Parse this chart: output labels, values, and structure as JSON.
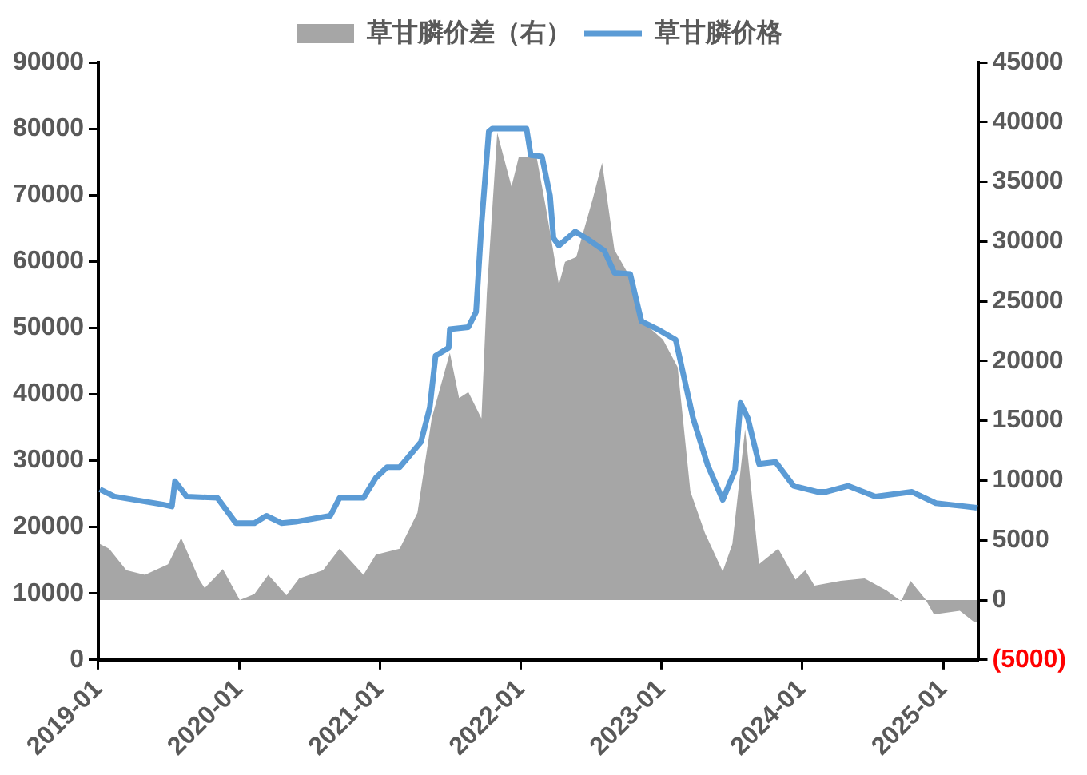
{
  "chart_data": {
    "type": "line",
    "legend": "top",
    "grid": false,
    "xlim": [
      "2019-01",
      "2025-04"
    ],
    "xticks": [
      "2019-01",
      "2020-01",
      "2021-01",
      "2022-01",
      "2023-01",
      "2024-01",
      "2025-01"
    ],
    "ylim": [
      0,
      90000
    ],
    "yticks": [
      0,
      10000,
      20000,
      30000,
      40000,
      50000,
      60000,
      70000,
      80000,
      90000
    ],
    "y2lim": [
      -5000,
      45000
    ],
    "y2ticks": [
      {
        "value": -5000,
        "label": "(5000)"
      },
      0,
      5000,
      10000,
      15000,
      20000,
      25000,
      30000,
      35000,
      40000,
      45000
    ],
    "series": [
      {
        "name": "草甘膦价差（右）",
        "type": "area",
        "axis": "y2",
        "color": "#a6a6a6",
        "x": [
          "2019-01-05",
          "2019-01-29",
          "2019-03-15",
          "2019-05-02",
          "2019-07-01",
          "2019-08-04",
          "2019-09-20",
          "2019-10-04",
          "2019-11-06",
          "2019-11-20",
          "2020-01-03",
          "2020-02-10",
          "2020-03-17",
          "2020-05-03",
          "2020-06-05",
          "2020-08-06",
          "2020-09-18",
          "2020-11-19",
          "2020-12-21",
          "2021-02-21",
          "2021-04-08",
          "2021-05-15",
          "2021-07-01",
          "2021-07-25",
          "2021-08-18",
          "2021-09-21",
          "2021-10-05",
          "2021-11-01",
          "2021-12-08",
          "2021-12-27",
          "2022-02-11",
          "2022-03-08",
          "2022-04-10",
          "2022-04-26",
          "2022-05-25",
          "2022-07-07",
          "2022-07-31",
          "2022-09-01",
          "2022-10-12",
          "2022-11-20",
          "2023-01-05",
          "2023-02-12",
          "2023-03-17",
          "2023-04-24",
          "2023-06-09",
          "2023-07-04",
          "2023-08-06",
          "2023-09-11",
          "2023-10-31",
          "2023-12-15",
          "2024-01-09",
          "2024-02-02",
          "2024-04-10",
          "2024-06-11",
          "2024-08-07",
          "2024-09-14",
          "2024-10-08",
          "2024-11-15",
          "2024-12-08",
          "2025-02-13",
          "2025-03-21",
          "2025-03-29"
        ],
        "values": [
          4700,
          4300,
          2500,
          2100,
          3000,
          5200,
          1700,
          1000,
          2100,
          2600,
          0,
          500,
          2100,
          400,
          1800,
          2500,
          4300,
          2100,
          3800,
          4300,
          7300,
          15200,
          20700,
          16900,
          17400,
          15200,
          25700,
          39100,
          34600,
          37100,
          37100,
          32700,
          26400,
          28300,
          28700,
          33600,
          36600,
          29300,
          27000,
          23100,
          21800,
          19500,
          9100,
          5600,
          2400,
          4700,
          14300,
          3000,
          4300,
          1700,
          2500,
          1200,
          1600,
          1800,
          800,
          -100,
          1600,
          100,
          -1200,
          -900,
          -1800,
          -1800
        ]
      },
      {
        "name": "草甘膦价格",
        "color": "#5b9bd5",
        "x": [
          "2019-01-05",
          "2019-02-12",
          "2019-06-17",
          "2019-07-11",
          "2019-07-19",
          "2019-08-18",
          "2019-11-06",
          "2019-12-24",
          "2020-02-10",
          "2020-03-12",
          "2020-04-20",
          "2020-05-27",
          "2020-08-25",
          "2020-09-18",
          "2020-11-19",
          "2020-12-21",
          "2021-01-19",
          "2021-02-21",
          "2021-04-17",
          "2021-05-10",
          "2021-05-25",
          "2021-06-28",
          "2021-07-01",
          "2021-08-18",
          "2021-09-07",
          "2021-09-21",
          "2021-10-10",
          "2021-10-19",
          "2022-01-16",
          "2022-01-27",
          "2022-02-25",
          "2022-03-18",
          "2022-03-27",
          "2022-04-10",
          "2022-05-22",
          "2022-06-20",
          "2022-08-06",
          "2022-09-01",
          "2022-10-12",
          "2022-11-10",
          "2022-12-22",
          "2023-02-07",
          "2023-03-24",
          "2023-05-01",
          "2023-06-09",
          "2023-07-11",
          "2023-07-25",
          "2023-08-13",
          "2023-09-11",
          "2023-10-24",
          "2023-12-10",
          "2024-02-10",
          "2024-03-03",
          "2024-04-29",
          "2024-07-09",
          "2024-10-12",
          "2024-12-13",
          "2025-03-01",
          "2025-03-29"
        ],
        "values": [
          25700,
          24600,
          23400,
          23100,
          26900,
          24600,
          24400,
          20600,
          20600,
          21700,
          20600,
          20800,
          21700,
          24400,
          24400,
          27400,
          29000,
          29000,
          32800,
          38000,
          45800,
          47000,
          49800,
          50100,
          52400,
          65400,
          79600,
          80000,
          80000,
          76000,
          75800,
          69900,
          63500,
          62400,
          64500,
          63500,
          61600,
          58300,
          58100,
          51000,
          49800,
          48200,
          36400,
          29300,
          24100,
          28600,
          38700,
          36400,
          29500,
          29800,
          26200,
          25300,
          25300,
          26200,
          24600,
          25300,
          23600,
          23100,
          22900
        ]
      }
    ]
  }
}
